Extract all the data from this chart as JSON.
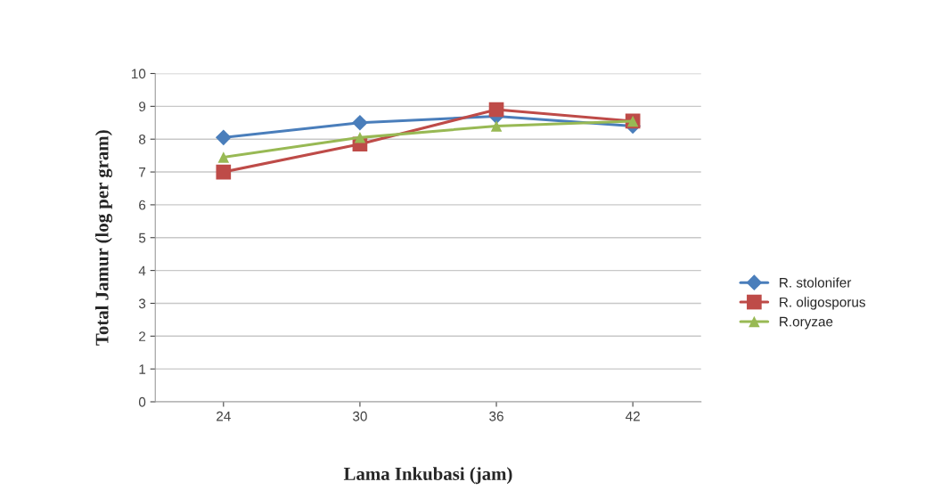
{
  "chart_data": {
    "type": "line",
    "xlabel": "Lama Inkubasi (jam)",
    "ylabel": "Total Jamur (log per gram)",
    "categories": [
      "24",
      "30",
      "36",
      "42"
    ],
    "series": [
      {
        "name": "R. stolonifer",
        "color": "#4a7ebb",
        "marker": "diamond",
        "values": [
          8.05,
          8.5,
          8.7,
          8.4
        ]
      },
      {
        "name": "R. oligosporus",
        "color": "#be4b48",
        "marker": "square",
        "values": [
          7.0,
          7.85,
          8.9,
          8.55
        ]
      },
      {
        "name": "R.oryzae",
        "color": "#98b954",
        "marker": "triangle",
        "values": [
          7.45,
          8.05,
          8.4,
          8.55
        ]
      }
    ],
    "ylim": [
      0,
      10
    ],
    "yticks": [
      0,
      1,
      2,
      3,
      4,
      5,
      6,
      7,
      8,
      9,
      10
    ],
    "grid": "y",
    "legend": "right",
    "line_style": "solid"
  }
}
